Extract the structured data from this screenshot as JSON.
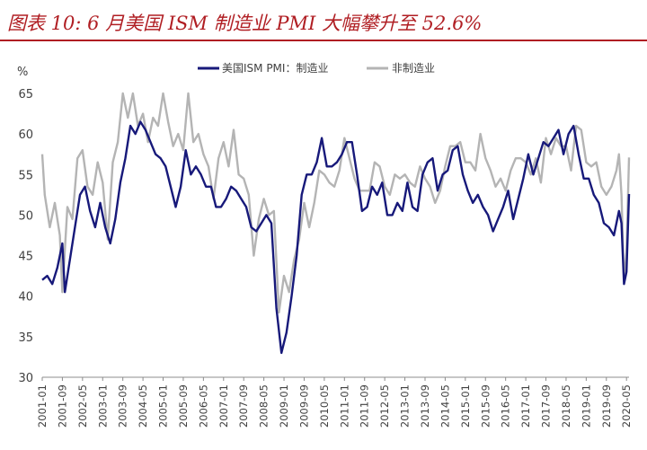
{
  "title": "图表 10: 6 月美国 ISM 制造业 PMI 大幅攀升至 52.6%",
  "chart_data": {
    "type": "line",
    "ylabel": "%",
    "ylim": [
      30,
      65
    ],
    "yticks": [
      30,
      35,
      40,
      45,
      50,
      55,
      60,
      65
    ],
    "xticks": [
      "2001-01",
      "2001-09",
      "2002-05",
      "2003-01",
      "2003-09",
      "2004-05",
      "2005-01",
      "2005-09",
      "2006-05",
      "2007-01",
      "2007-09",
      "2008-05",
      "2009-01",
      "2009-09",
      "2010-05",
      "2011-01",
      "2011-09",
      "2012-05",
      "2013-01",
      "2013-09",
      "2014-05",
      "2015-01",
      "2015-09",
      "2016-05",
      "2017-01",
      "2017-09",
      "2018-05",
      "2019-01",
      "2019-09",
      "2020-05"
    ],
    "x_range": [
      "2001-01",
      "2020-06"
    ],
    "grid": false,
    "legend": "top-center",
    "colors": {
      "manufacturing": "#17197a",
      "non_manufacturing": "#b4b4b4",
      "title": "#b01e23"
    },
    "series": [
      {
        "name": "美国ISM PMI：制造业",
        "points": [
          [
            "2001-01",
            42.0
          ],
          [
            "2001-03",
            42.5
          ],
          [
            "2001-05",
            41.5
          ],
          [
            "2001-07",
            43.5
          ],
          [
            "2001-09",
            46.5
          ],
          [
            "2001-10",
            40.5
          ],
          [
            "2001-12",
            44.5
          ],
          [
            "2002-02",
            48.5
          ],
          [
            "2002-04",
            52.5
          ],
          [
            "2002-06",
            53.5
          ],
          [
            "2002-08",
            50.5
          ],
          [
            "2002-10",
            48.5
          ],
          [
            "2002-12",
            51.5
          ],
          [
            "2003-02",
            48.5
          ],
          [
            "2003-04",
            46.5
          ],
          [
            "2003-06",
            49.5
          ],
          [
            "2003-08",
            54.0
          ],
          [
            "2003-10",
            57.0
          ],
          [
            "2003-12",
            61.0
          ],
          [
            "2004-02",
            60.0
          ],
          [
            "2004-04",
            61.5
          ],
          [
            "2004-06",
            60.5
          ],
          [
            "2004-08",
            59.0
          ],
          [
            "2004-10",
            57.5
          ],
          [
            "2004-12",
            57.0
          ],
          [
            "2005-02",
            56.0
          ],
          [
            "2005-04",
            53.5
          ],
          [
            "2005-06",
            51.0
          ],
          [
            "2005-08",
            53.5
          ],
          [
            "2005-10",
            58.0
          ],
          [
            "2005-12",
            55.0
          ],
          [
            "2006-02",
            56.0
          ],
          [
            "2006-04",
            55.0
          ],
          [
            "2006-06",
            53.5
          ],
          [
            "2006-08",
            53.5
          ],
          [
            "2006-10",
            51.0
          ],
          [
            "2006-12",
            51.0
          ],
          [
            "2007-02",
            52.0
          ],
          [
            "2007-04",
            53.5
          ],
          [
            "2007-06",
            53.0
          ],
          [
            "2007-08",
            52.0
          ],
          [
            "2007-10",
            51.0
          ],
          [
            "2007-12",
            48.5
          ],
          [
            "2008-02",
            48.0
          ],
          [
            "2008-04",
            49.0
          ],
          [
            "2008-06",
            50.0
          ],
          [
            "2008-08",
            49.0
          ],
          [
            "2008-10",
            38.5
          ],
          [
            "2008-12",
            33.0
          ],
          [
            "2009-02",
            35.5
          ],
          [
            "2009-04",
            40.0
          ],
          [
            "2009-06",
            45.0
          ],
          [
            "2009-08",
            52.5
          ],
          [
            "2009-10",
            55.0
          ],
          [
            "2009-12",
            55.0
          ],
          [
            "2010-02",
            56.5
          ],
          [
            "2010-04",
            59.5
          ],
          [
            "2010-06",
            56.0
          ],
          [
            "2010-08",
            56.0
          ],
          [
            "2010-10",
            56.5
          ],
          [
            "2010-12",
            57.5
          ],
          [
            "2011-02",
            59.0
          ],
          [
            "2011-04",
            59.0
          ],
          [
            "2011-06",
            55.0
          ],
          [
            "2011-08",
            50.5
          ],
          [
            "2011-10",
            51.0
          ],
          [
            "2011-12",
            53.5
          ],
          [
            "2012-02",
            52.5
          ],
          [
            "2012-04",
            54.0
          ],
          [
            "2012-06",
            50.0
          ],
          [
            "2012-08",
            50.0
          ],
          [
            "2012-10",
            51.5
          ],
          [
            "2012-12",
            50.5
          ],
          [
            "2013-02",
            54.0
          ],
          [
            "2013-04",
            51.0
          ],
          [
            "2013-06",
            50.5
          ],
          [
            "2013-08",
            55.0
          ],
          [
            "2013-10",
            56.5
          ],
          [
            "2013-12",
            57.0
          ],
          [
            "2014-02",
            53.0
          ],
          [
            "2014-04",
            55.0
          ],
          [
            "2014-06",
            55.5
          ],
          [
            "2014-08",
            58.0
          ],
          [
            "2014-10",
            58.5
          ],
          [
            "2014-12",
            55.0
          ],
          [
            "2015-02",
            53.0
          ],
          [
            "2015-04",
            51.5
          ],
          [
            "2015-06",
            52.5
          ],
          [
            "2015-08",
            51.0
          ],
          [
            "2015-10",
            50.0
          ],
          [
            "2015-12",
            48.0
          ],
          [
            "2016-02",
            49.5
          ],
          [
            "2016-04",
            51.0
          ],
          [
            "2016-06",
            53.0
          ],
          [
            "2016-08",
            49.5
          ],
          [
            "2016-10",
            52.0
          ],
          [
            "2016-12",
            54.5
          ],
          [
            "2017-02",
            57.5
          ],
          [
            "2017-04",
            55.0
          ],
          [
            "2017-06",
            57.0
          ],
          [
            "2017-08",
            59.0
          ],
          [
            "2017-10",
            58.5
          ],
          [
            "2017-12",
            59.5
          ],
          [
            "2018-02",
            60.5
          ],
          [
            "2018-04",
            57.5
          ],
          [
            "2018-06",
            60.0
          ],
          [
            "2018-08",
            61.0
          ],
          [
            "2018-10",
            57.5
          ],
          [
            "2018-12",
            54.5
          ],
          [
            "2019-02",
            54.5
          ],
          [
            "2019-04",
            52.5
          ],
          [
            "2019-06",
            51.5
          ],
          [
            "2019-08",
            49.0
          ],
          [
            "2019-10",
            48.5
          ],
          [
            "2019-12",
            47.5
          ],
          [
            "2020-02",
            50.5
          ],
          [
            "2020-03",
            49.0
          ],
          [
            "2020-04",
            41.5
          ],
          [
            "2020-05",
            43.0
          ],
          [
            "2020-06",
            52.6
          ]
        ]
      },
      {
        "name": "非制造业",
        "points": [
          [
            "2001-01",
            57.5
          ],
          [
            "2001-02",
            52.5
          ],
          [
            "2001-04",
            48.5
          ],
          [
            "2001-06",
            51.5
          ],
          [
            "2001-08",
            47.5
          ],
          [
            "2001-09",
            40.5
          ],
          [
            "2001-11",
            51.0
          ],
          [
            "2002-01",
            49.5
          ],
          [
            "2002-03",
            57.0
          ],
          [
            "2002-05",
            58.0
          ],
          [
            "2002-07",
            53.5
          ],
          [
            "2002-09",
            52.5
          ],
          [
            "2002-11",
            56.5
          ],
          [
            "2003-01",
            54.0
          ],
          [
            "2003-03",
            47.0
          ],
          [
            "2003-05",
            56.5
          ],
          [
            "2003-07",
            59.0
          ],
          [
            "2003-09",
            65.0
          ],
          [
            "2003-11",
            62.0
          ],
          [
            "2004-01",
            65.0
          ],
          [
            "2004-03",
            61.0
          ],
          [
            "2004-05",
            62.5
          ],
          [
            "2004-07",
            59.0
          ],
          [
            "2004-09",
            62.0
          ],
          [
            "2004-11",
            61.0
          ],
          [
            "2005-01",
            65.0
          ],
          [
            "2005-03",
            61.5
          ],
          [
            "2005-05",
            58.5
          ],
          [
            "2005-07",
            60.0
          ],
          [
            "2005-09",
            58.0
          ],
          [
            "2005-11",
            65.0
          ],
          [
            "2006-01",
            59.0
          ],
          [
            "2006-03",
            60.0
          ],
          [
            "2006-05",
            57.5
          ],
          [
            "2006-07",
            56.0
          ],
          [
            "2006-09",
            52.0
          ],
          [
            "2006-11",
            57.0
          ],
          [
            "2007-01",
            59.0
          ],
          [
            "2007-03",
            56.0
          ],
          [
            "2007-05",
            60.5
          ],
          [
            "2007-07",
            55.0
          ],
          [
            "2007-09",
            54.5
          ],
          [
            "2007-11",
            52.5
          ],
          [
            "2008-01",
            45.0
          ],
          [
            "2008-03",
            49.5
          ],
          [
            "2008-05",
            52.0
          ],
          [
            "2008-07",
            50.0
          ],
          [
            "2008-09",
            50.5
          ],
          [
            "2008-11",
            38.0
          ],
          [
            "2009-01",
            42.5
          ],
          [
            "2009-03",
            40.5
          ],
          [
            "2009-05",
            44.5
          ],
          [
            "2009-07",
            47.0
          ],
          [
            "2009-09",
            51.5
          ],
          [
            "2009-11",
            48.5
          ],
          [
            "2010-01",
            51.5
          ],
          [
            "2010-03",
            55.5
          ],
          [
            "2010-05",
            55.0
          ],
          [
            "2010-07",
            54.0
          ],
          [
            "2010-09",
            53.5
          ],
          [
            "2010-11",
            55.5
          ],
          [
            "2011-01",
            59.5
          ],
          [
            "2011-03",
            57.0
          ],
          [
            "2011-05",
            54.5
          ],
          [
            "2011-07",
            53.0
          ],
          [
            "2011-09",
            53.0
          ],
          [
            "2011-11",
            53.0
          ],
          [
            "2012-01",
            56.5
          ],
          [
            "2012-03",
            56.0
          ],
          [
            "2012-05",
            53.5
          ],
          [
            "2012-07",
            52.5
          ],
          [
            "2012-09",
            55.0
          ],
          [
            "2012-11",
            54.5
          ],
          [
            "2013-01",
            55.0
          ],
          [
            "2013-03",
            54.0
          ],
          [
            "2013-05",
            53.5
          ],
          [
            "2013-07",
            56.0
          ],
          [
            "2013-09",
            54.5
          ],
          [
            "2013-11",
            53.5
          ],
          [
            "2014-01",
            51.5
          ],
          [
            "2014-03",
            53.0
          ],
          [
            "2014-05",
            56.0
          ],
          [
            "2014-07",
            58.5
          ],
          [
            "2014-09",
            58.5
          ],
          [
            "2014-11",
            59.0
          ],
          [
            "2015-01",
            56.5
          ],
          [
            "2015-03",
            56.5
          ],
          [
            "2015-05",
            55.5
          ],
          [
            "2015-07",
            60.0
          ],
          [
            "2015-09",
            57.0
          ],
          [
            "2015-11",
            55.5
          ],
          [
            "2016-01",
            53.5
          ],
          [
            "2016-03",
            54.5
          ],
          [
            "2016-05",
            53.0
          ],
          [
            "2016-07",
            55.5
          ],
          [
            "2016-09",
            57.0
          ],
          [
            "2016-11",
            57.0
          ],
          [
            "2017-01",
            56.5
          ],
          [
            "2017-03",
            55.0
          ],
          [
            "2017-05",
            57.0
          ],
          [
            "2017-07",
            54.0
          ],
          [
            "2017-09",
            59.5
          ],
          [
            "2017-11",
            57.5
          ],
          [
            "2018-01",
            59.5
          ],
          [
            "2018-03",
            58.5
          ],
          [
            "2018-05",
            58.5
          ],
          [
            "2018-07",
            55.5
          ],
          [
            "2018-09",
            61.0
          ],
          [
            "2018-11",
            60.5
          ],
          [
            "2019-01",
            56.5
          ],
          [
            "2019-03",
            56.0
          ],
          [
            "2019-05",
            56.5
          ],
          [
            "2019-07",
            53.5
          ],
          [
            "2019-09",
            52.5
          ],
          [
            "2019-11",
            53.5
          ],
          [
            "2020-01",
            55.5
          ],
          [
            "2020-02",
            57.5
          ],
          [
            "2020-03",
            52.5
          ],
          [
            "2020-04",
            41.8
          ],
          [
            "2020-05",
            45.4
          ],
          [
            "2020-06",
            57.1
          ]
        ]
      }
    ]
  }
}
